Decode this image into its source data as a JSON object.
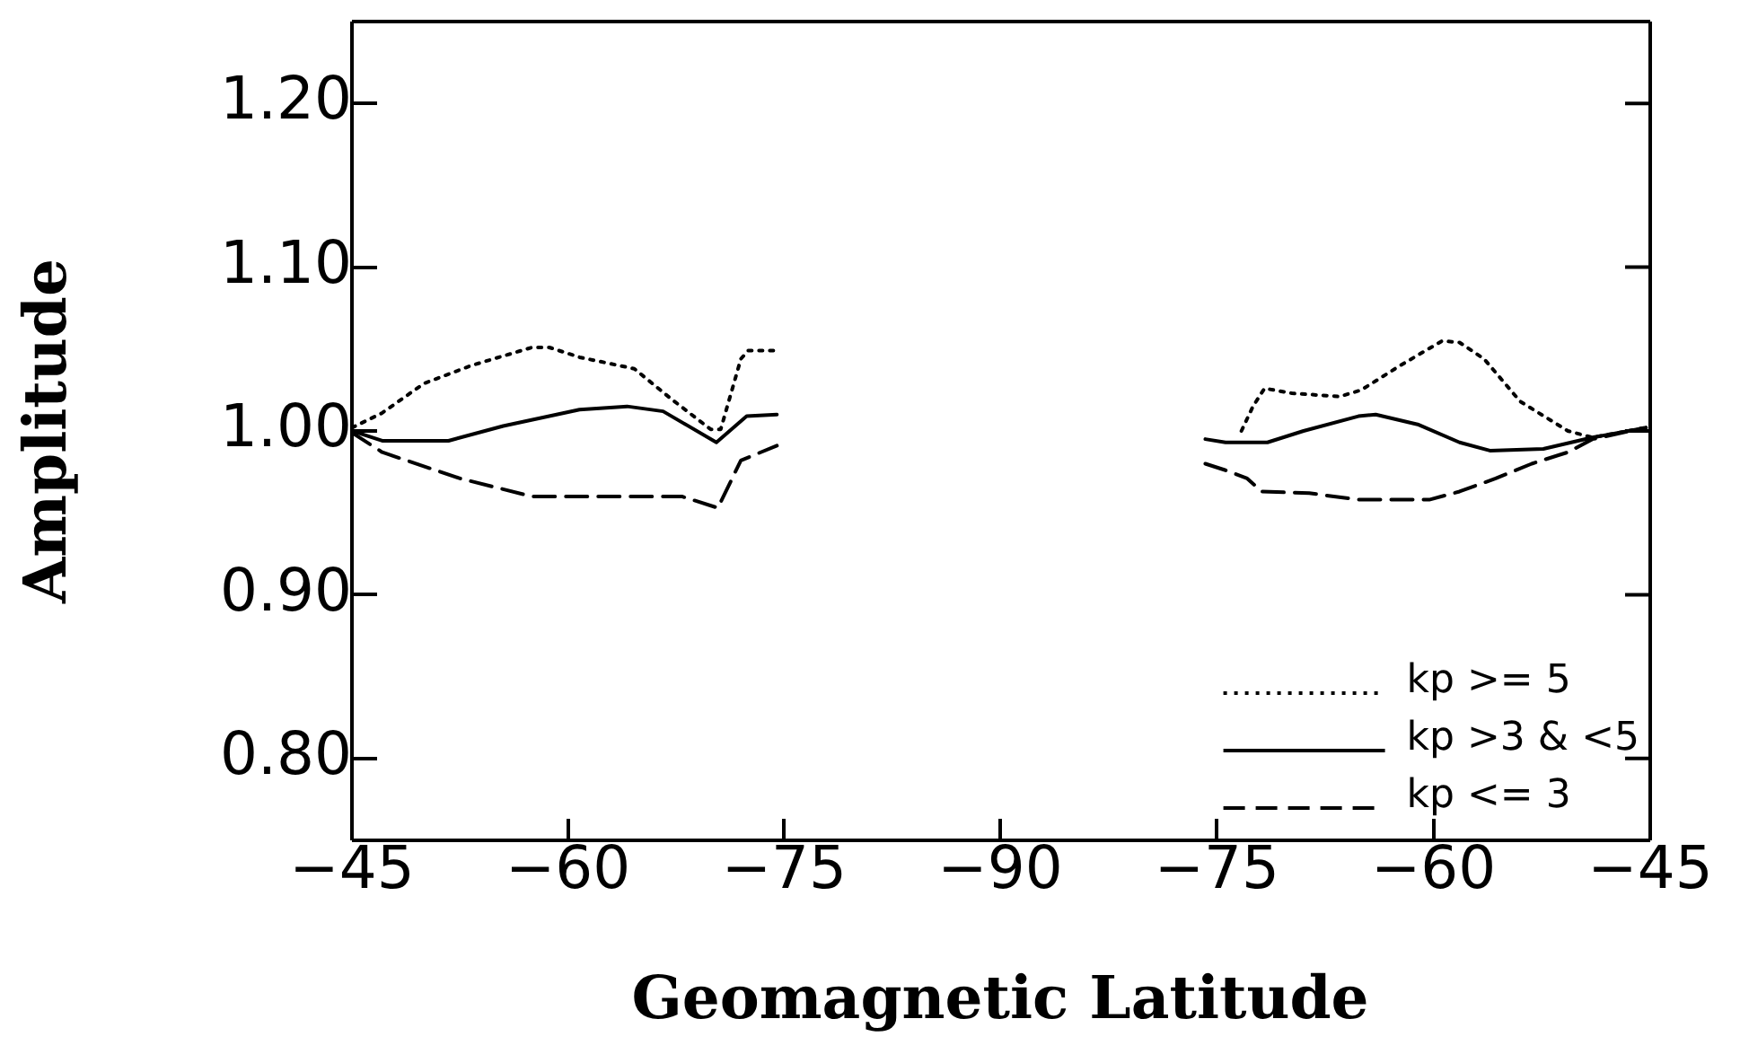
{
  "chart_data": [
    {
      "type": "line",
      "xlabel": "Geomagnetic Latitude",
      "ylabel": "Amplitude",
      "xlim": [
        -45,
        -90
      ],
      "xticks": [
        -45,
        -60,
        -75,
        -90
      ],
      "ylim": [
        0.75,
        1.25
      ],
      "yticks": [
        {
          "value": 0.8,
          "label": "0.80"
        },
        {
          "value": 0.9,
          "label": "0.90"
        },
        {
          "value": 1.0,
          "label": "1.00"
        },
        {
          "value": 1.1,
          "label": "1.10"
        },
        {
          "value": 1.2,
          "label": "1.20"
        }
      ],
      "grid": false,
      "marker": "none",
      "series": [
        {
          "color": "#000000",
          "line_style": "dotted",
          "x": [
            -45,
            -47.1,
            -50,
            -53.3,
            -57.5,
            -58.7,
            -60.8,
            -64.6,
            -67.1,
            -69.9,
            -70.6,
            -72,
            -72.5,
            -74.3
          ],
          "values": [
            1.002,
            1.011,
            1.029,
            1.04,
            1.051,
            1.051,
            1.045,
            1.038,
            1.02,
            1.001,
            1.001,
            1.044,
            1.049,
            1.049
          ]
        },
        {
          "color": "#000000",
          "line_style": "solid",
          "x": [
            -45,
            -47.1,
            -51.7,
            -55.5,
            -60.8,
            -64.1,
            -66.6,
            -70.3,
            -72.4,
            -74.5
          ],
          "values": [
            1.0,
            0.994,
            0.994,
            1.003,
            1.013,
            1.015,
            1.012,
            0.993,
            1.009,
            1.01
          ]
        },
        {
          "color": "#000000",
          "line_style": "dashed",
          "x": [
            -45,
            -47.1,
            -52.5,
            -57.5,
            -67.9,
            -70.4,
            -72,
            -74.5
          ],
          "values": [
            0.999,
            0.987,
            0.971,
            0.96,
            0.96,
            0.953,
            0.982,
            0.991
          ]
        }
      ]
    },
    {
      "type": "line",
      "xlim": [
        -90,
        -45
      ],
      "xticks": [
        {
          "value": -90,
          "label": null
        },
        -75,
        -60,
        -45
      ],
      "ylim": [
        0.75,
        1.25
      ],
      "tick_labels": "x",
      "grid": false,
      "legend": "bottom right",
      "marker": "none",
      "series": [
        {
          "name": "kp >= 5",
          "color": "#000000",
          "line_style": "dotted",
          "x": [
            -73.3,
            -72.5,
            -71.7,
            -69.8,
            -66.5,
            -65,
            -62.3,
            -59.4,
            -58.2,
            -56.5,
            -54,
            -50.7,
            -49,
            -45.3
          ],
          "values": [
            1.0,
            1.015,
            1.026,
            1.023,
            1.021,
            1.025,
            1.04,
            1.055,
            1.054,
            1.044,
            1.018,
            1.0,
            0.996,
            1.002
          ]
        },
        {
          "name": "kp >3 & <5",
          "color": "#000000",
          "line_style": "solid",
          "x": [
            -75.8,
            -74.4,
            -71.5,
            -69,
            -65.2,
            -64,
            -61.1,
            -58.2,
            -56.1,
            -52.4,
            -49,
            -45.3
          ],
          "values": [
            0.995,
            0.993,
            0.993,
            1.0,
            1.009,
            1.01,
            1.004,
            0.993,
            0.988,
            0.989,
            0.996,
            1.002
          ]
        },
        {
          "name": "kp <= 3",
          "color": "#000000",
          "line_style": "dashed",
          "x": [
            -75.8,
            -74.4,
            -72.9,
            -71.9,
            -68.6,
            -65.2,
            -60.3,
            -58.2,
            -55.7,
            -53.2,
            -50.7,
            -49,
            -45.3
          ],
          "values": [
            0.98,
            0.976,
            0.971,
            0.963,
            0.962,
            0.958,
            0.958,
            0.963,
            0.971,
            0.98,
            0.987,
            0.995,
            1.002
          ]
        }
      ]
    }
  ]
}
